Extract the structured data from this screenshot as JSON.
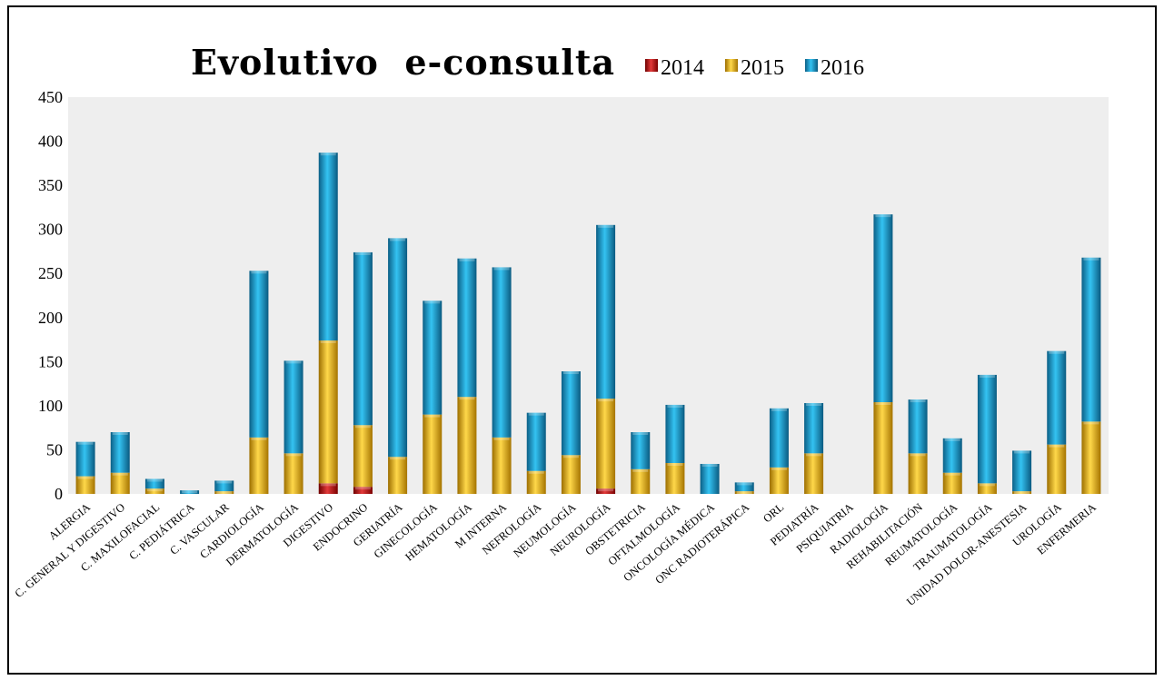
{
  "chart_data": {
    "type": "bar",
    "stacked": true,
    "title": "Evolutivo  e-consulta",
    "xlabel": "",
    "ylabel": "",
    "ylim": [
      0,
      450
    ],
    "yticks": [
      0,
      50,
      100,
      150,
      200,
      250,
      300,
      350,
      400,
      450
    ],
    "grid": false,
    "legend_position": "top-right",
    "plot_background": "#eeeeee",
    "categories": [
      "ALERGIA",
      "C. GENERAL Y DIGESTIVO",
      "C. MAXILOFACIAL",
      "C. PEDIÁTRICA",
      "C. VASCULAR",
      "CARDIOLOGÍA",
      "DERMATOLOGÍA",
      "DIGESTIVO",
      "ENDOCRINO",
      "GERIATRÍA",
      "GINECOLOGÍA",
      "HEMATOLOGÍA",
      "M INTERNA",
      "NEFROLOGÍA",
      "NEUMOLOGÍA",
      "NEUROLOGÍA",
      "OBSTETRICIA",
      "OFTALMOLOGÍA",
      "ONCOLOGÍA MÉDICA",
      "ONC RADIOTERÁPICA",
      "ORL",
      "PEDIATRÍA",
      "PSIQUIATRIA",
      "RADIOLOGÍA",
      "REHABILITACIÓN",
      "REUMATOLOGÍA",
      "TRAUMATOLOGÍA",
      "UNIDAD DOLOR-ANESTESIA",
      "UROLOGÍA",
      "ENFERMERIA"
    ],
    "series": [
      {
        "name": "2014",
        "color": "#c00000",
        "values": [
          0,
          0,
          0,
          0,
          0,
          0,
          0,
          12,
          8,
          0,
          0,
          0,
          0,
          0,
          0,
          6,
          0,
          0,
          0,
          0,
          0,
          0,
          0,
          0,
          0,
          0,
          0,
          0,
          0,
          0
        ]
      },
      {
        "name": "2015",
        "color": "#f0b400",
        "values": [
          20,
          24,
          6,
          0,
          3,
          64,
          46,
          162,
          70,
          42,
          90,
          110,
          64,
          26,
          44,
          102,
          28,
          35,
          0,
          3,
          30,
          46,
          0,
          104,
          46,
          24,
          12,
          3,
          56,
          82
        ]
      },
      {
        "name": "2016",
        "color": "#1ba1d8",
        "values": [
          39,
          46,
          11,
          4,
          12,
          189,
          105,
          213,
          196,
          248,
          129,
          157,
          193,
          66,
          95,
          197,
          42,
          66,
          34,
          10,
          67,
          57,
          0,
          213,
          61,
          39,
          123,
          46,
          106,
          186
        ]
      }
    ]
  }
}
